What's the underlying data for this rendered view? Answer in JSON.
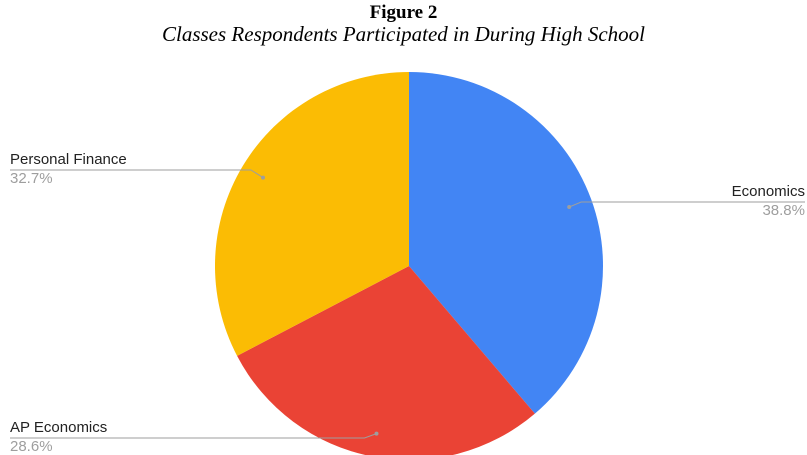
{
  "figure": {
    "label": "Figure 2",
    "caption": "Classes Respondents Participated in During High School"
  },
  "chart_data": {
    "type": "pie",
    "slices": [
      {
        "label": "Economics",
        "percent_label": "38.8%",
        "value": 38.8,
        "color": "#4285f4"
      },
      {
        "label": "AP Economics",
        "percent_label": "28.6%",
        "value": 28.6,
        "color": "#ea4335"
      },
      {
        "label": "Personal Finance",
        "percent_label": "32.7%",
        "value": 32.7,
        "color": "#fbbc04"
      }
    ],
    "start_angle_deg": 0,
    "direction": "clockwise",
    "label_style": "outside-with-leader-lines",
    "legend": "none",
    "leader_line_color": "#9e9e9e"
  }
}
